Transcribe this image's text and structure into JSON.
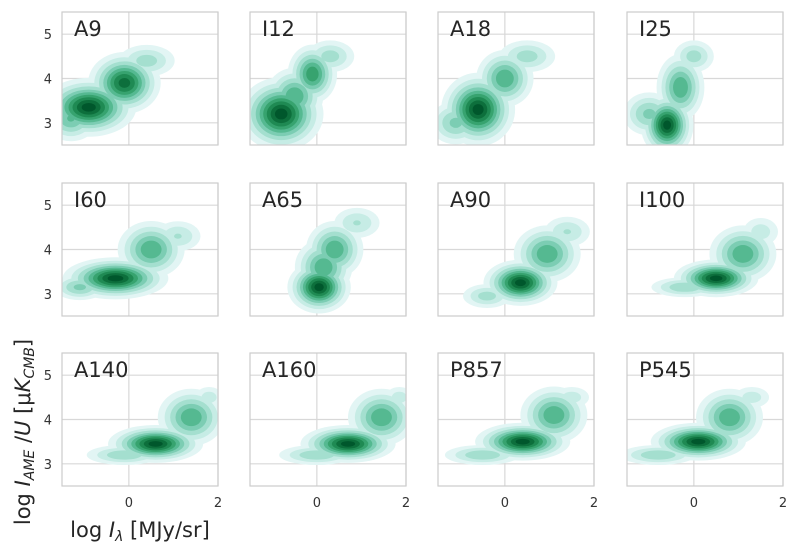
{
  "chart_data": {
    "type": "contour",
    "xlabel": "log I_λ [MJy/sr]",
    "ylabel": "log I_AME /U [μK_CMB]",
    "xlim": [
      -1.5,
      2.0
    ],
    "ylim": [
      2.5,
      5.5
    ],
    "xticks": [
      "0",
      "2"
    ],
    "yticks": [
      "3",
      "4",
      "5"
    ],
    "grid": true,
    "colormap": [
      "#e2f5f4",
      "#c6ece5",
      "#a4dfcf",
      "#7ccdb3",
      "#55b991",
      "#37a36f",
      "#1f8a53",
      "#0d6f3c",
      "#00572c"
    ],
    "panels": [
      {
        "label": "A9",
        "blobs": [
          {
            "x": -0.9,
            "y": 3.35,
            "sx": 0.45,
            "sy": 0.28,
            "w": 1.0
          },
          {
            "x": -0.1,
            "y": 3.9,
            "sx": 0.35,
            "sy": 0.3,
            "w": 0.9
          },
          {
            "x": -1.3,
            "y": 3.1,
            "sx": 0.3,
            "sy": 0.25,
            "w": 0.5
          },
          {
            "x": 0.4,
            "y": 4.4,
            "sx": 0.35,
            "sy": 0.2,
            "w": 0.3
          }
        ]
      },
      {
        "label": "I12",
        "blobs": [
          {
            "x": -0.8,
            "y": 3.2,
            "sx": 0.4,
            "sy": 0.35,
            "w": 1.0
          },
          {
            "x": -0.1,
            "y": 4.1,
            "sx": 0.25,
            "sy": 0.3,
            "w": 0.7
          },
          {
            "x": -0.5,
            "y": 3.6,
            "sx": 0.3,
            "sy": 0.3,
            "w": 0.6
          },
          {
            "x": 0.3,
            "y": 4.5,
            "sx": 0.3,
            "sy": 0.2,
            "w": 0.3
          }
        ]
      },
      {
        "label": "A18",
        "blobs": [
          {
            "x": -0.6,
            "y": 3.3,
            "sx": 0.35,
            "sy": 0.35,
            "w": 1.0
          },
          {
            "x": 0.0,
            "y": 4.0,
            "sx": 0.3,
            "sy": 0.3,
            "w": 0.6
          },
          {
            "x": -1.1,
            "y": 3.0,
            "sx": 0.3,
            "sy": 0.25,
            "w": 0.4
          },
          {
            "x": 0.5,
            "y": 4.5,
            "sx": 0.35,
            "sy": 0.2,
            "w": 0.3
          }
        ]
      },
      {
        "label": "I25",
        "blobs": [
          {
            "x": -0.6,
            "y": 2.95,
            "sx": 0.25,
            "sy": 0.3,
            "w": 1.0
          },
          {
            "x": -0.3,
            "y": 3.8,
            "sx": 0.25,
            "sy": 0.35,
            "w": 0.6
          },
          {
            "x": -1.0,
            "y": 3.2,
            "sx": 0.3,
            "sy": 0.25,
            "w": 0.4
          },
          {
            "x": 0.0,
            "y": 4.5,
            "sx": 0.25,
            "sy": 0.2,
            "w": 0.3
          }
        ]
      },
      {
        "label": "I60",
        "blobs": [
          {
            "x": -0.3,
            "y": 3.35,
            "sx": 0.5,
            "sy": 0.2,
            "w": 1.0
          },
          {
            "x": 0.5,
            "y": 4.0,
            "sx": 0.35,
            "sy": 0.3,
            "w": 0.6
          },
          {
            "x": -1.1,
            "y": 3.15,
            "sx": 0.3,
            "sy": 0.15,
            "w": 0.4
          },
          {
            "x": 1.1,
            "y": 4.3,
            "sx": 0.3,
            "sy": 0.2,
            "w": 0.25
          }
        ]
      },
      {
        "label": "A65",
        "blobs": [
          {
            "x": 0.05,
            "y": 3.15,
            "sx": 0.3,
            "sy": 0.25,
            "w": 1.0
          },
          {
            "x": 0.4,
            "y": 4.0,
            "sx": 0.3,
            "sy": 0.3,
            "w": 0.6
          },
          {
            "x": 0.15,
            "y": 3.6,
            "sx": 0.3,
            "sy": 0.3,
            "w": 0.6
          },
          {
            "x": 0.9,
            "y": 4.6,
            "sx": 0.3,
            "sy": 0.2,
            "w": 0.25
          }
        ]
      },
      {
        "label": "A90",
        "blobs": [
          {
            "x": 0.35,
            "y": 3.25,
            "sx": 0.35,
            "sy": 0.22,
            "w": 1.0
          },
          {
            "x": 0.95,
            "y": 3.9,
            "sx": 0.35,
            "sy": 0.3,
            "w": 0.6
          },
          {
            "x": -0.4,
            "y": 2.95,
            "sx": 0.3,
            "sy": 0.15,
            "w": 0.3
          },
          {
            "x": 1.4,
            "y": 4.4,
            "sx": 0.3,
            "sy": 0.2,
            "w": 0.25
          }
        ]
      },
      {
        "label": "I100",
        "blobs": [
          {
            "x": 0.5,
            "y": 3.35,
            "sx": 0.4,
            "sy": 0.18,
            "w": 1.0
          },
          {
            "x": 1.1,
            "y": 3.9,
            "sx": 0.35,
            "sy": 0.3,
            "w": 0.6
          },
          {
            "x": -0.2,
            "y": 3.15,
            "sx": 0.4,
            "sy": 0.12,
            "w": 0.35
          },
          {
            "x": 1.5,
            "y": 4.4,
            "sx": 0.25,
            "sy": 0.2,
            "w": 0.2
          }
        ]
      },
      {
        "label": "A140",
        "blobs": [
          {
            "x": 0.6,
            "y": 3.45,
            "sx": 0.45,
            "sy": 0.18,
            "w": 1.0
          },
          {
            "x": 1.4,
            "y": 4.05,
            "sx": 0.35,
            "sy": 0.3,
            "w": 0.6
          },
          {
            "x": -0.1,
            "y": 3.2,
            "sx": 0.45,
            "sy": 0.12,
            "w": 0.35
          },
          {
            "x": 1.8,
            "y": 4.5,
            "sx": 0.2,
            "sy": 0.15,
            "w": 0.2
          }
        ]
      },
      {
        "label": "A160",
        "blobs": [
          {
            "x": 0.7,
            "y": 3.45,
            "sx": 0.45,
            "sy": 0.18,
            "w": 1.0
          },
          {
            "x": 1.45,
            "y": 4.05,
            "sx": 0.35,
            "sy": 0.3,
            "w": 0.6
          },
          {
            "x": 0.0,
            "y": 3.2,
            "sx": 0.45,
            "sy": 0.12,
            "w": 0.35
          },
          {
            "x": 1.85,
            "y": 4.5,
            "sx": 0.2,
            "sy": 0.15,
            "w": 0.2
          }
        ]
      },
      {
        "label": "P857",
        "blobs": [
          {
            "x": 0.4,
            "y": 3.5,
            "sx": 0.45,
            "sy": 0.18,
            "w": 1.0
          },
          {
            "x": 1.1,
            "y": 4.1,
            "sx": 0.35,
            "sy": 0.3,
            "w": 0.6
          },
          {
            "x": -0.5,
            "y": 3.2,
            "sx": 0.45,
            "sy": 0.12,
            "w": 0.35
          },
          {
            "x": 1.5,
            "y": 4.5,
            "sx": 0.25,
            "sy": 0.15,
            "w": 0.2
          }
        ]
      },
      {
        "label": "P545",
        "blobs": [
          {
            "x": 0.1,
            "y": 3.5,
            "sx": 0.45,
            "sy": 0.18,
            "w": 1.0
          },
          {
            "x": 0.8,
            "y": 4.05,
            "sx": 0.35,
            "sy": 0.3,
            "w": 0.6
          },
          {
            "x": -0.8,
            "y": 3.2,
            "sx": 0.45,
            "sy": 0.12,
            "w": 0.35
          },
          {
            "x": 1.3,
            "y": 4.5,
            "sx": 0.25,
            "sy": 0.15,
            "w": 0.2
          }
        ]
      }
    ]
  }
}
